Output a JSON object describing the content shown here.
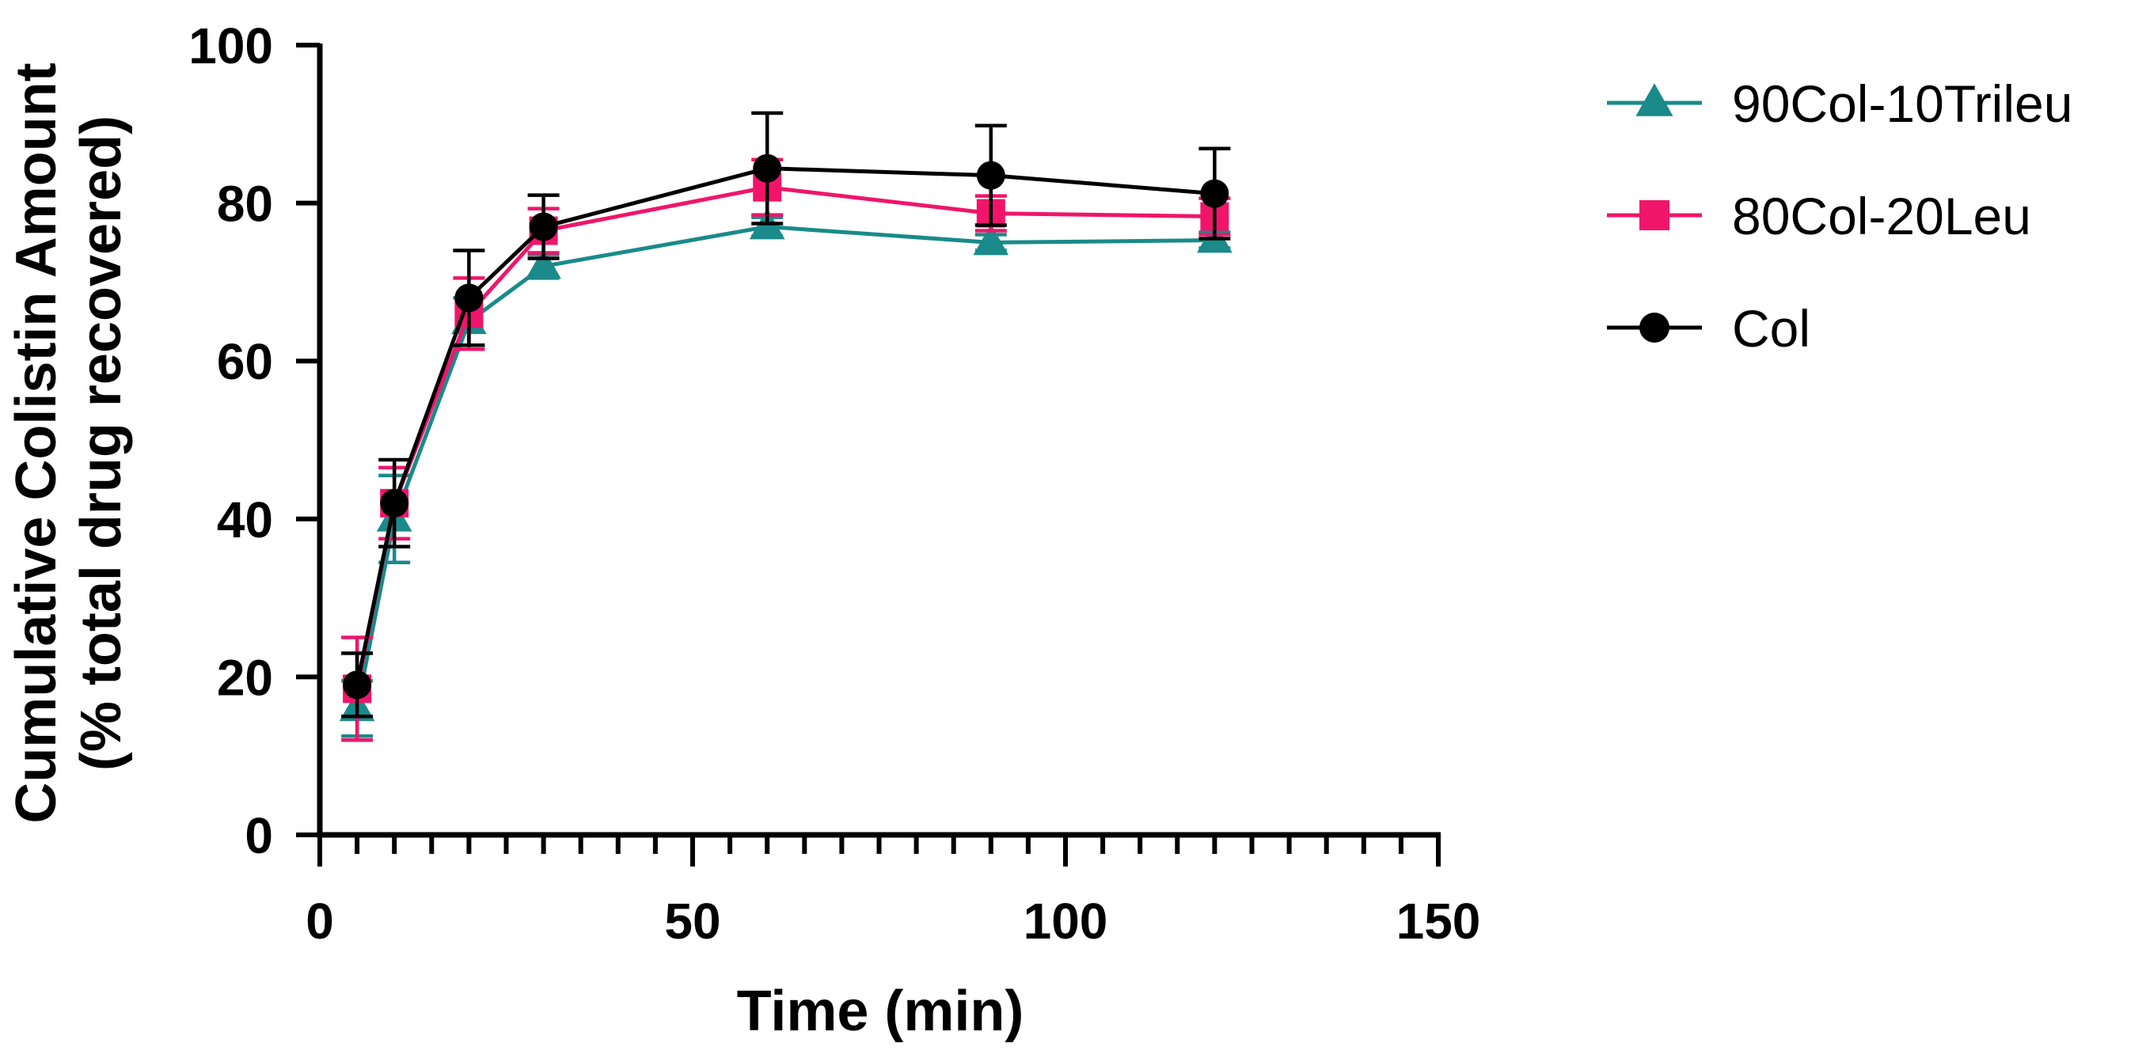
{
  "chart_data": {
    "type": "line",
    "title": "",
    "xlabel": "Time (min)",
    "ylabel_line1": "Cumulative Colistin Amount",
    "ylabel_line2": "(% total drug recovered)",
    "xlim": [
      0,
      150
    ],
    "ylim": [
      0,
      100
    ],
    "x_ticks": [
      0,
      50,
      100,
      150
    ],
    "y_ticks": [
      0,
      20,
      40,
      60,
      80,
      100
    ],
    "x_minor_step": 5,
    "x": [
      5,
      10,
      20,
      30,
      60,
      90,
      120
    ],
    "grid": false,
    "legend_position": "right",
    "series": [
      {
        "name": "90Col-10Trileu",
        "color": "#1a8a8a",
        "marker": "triangle",
        "values": [
          16,
          40,
          65,
          72,
          77,
          75,
          75.3
        ],
        "errors": [
          3.5,
          5.5,
          3,
          1.5,
          1.2,
          1,
          1
        ]
      },
      {
        "name": "80Col-20Leu",
        "color": "#f0156b",
        "marker": "square",
        "values": [
          18.5,
          42,
          66,
          76.5,
          82,
          78.7,
          78.3
        ],
        "errors": [
          6.5,
          4.5,
          4.5,
          2.8,
          3.5,
          2.2,
          2.3
        ]
      },
      {
        "name": "Col",
        "color": "#000000",
        "marker": "circle",
        "values": [
          19,
          42,
          68,
          77,
          84.4,
          83.5,
          81.2
        ],
        "errors": [
          4,
          5.5,
          6,
          4,
          7,
          6.3,
          5.7
        ]
      }
    ]
  }
}
